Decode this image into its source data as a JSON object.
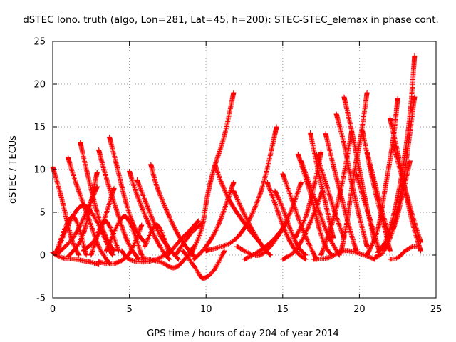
{
  "chart_data": {
    "type": "scatter",
    "title": "dSTEC Iono. truth (algo, Lon=281, Lat=45, h=200): STEC-STEC_elemax in phase cont.",
    "xlabel": "GPS time / hours of day 204 of year 2014",
    "ylabel": "dSTEC  / TECUs",
    "xlim": [
      0,
      25
    ],
    "ylim": [
      -5,
      25
    ],
    "xticks": [
      0,
      5,
      10,
      15,
      20,
      25
    ],
    "yticks": [
      -5,
      0,
      5,
      10,
      15,
      20,
      25
    ],
    "grid": true,
    "marker": "plus",
    "color": "#ff0000",
    "arcs": [
      {
        "x": [
          0.0,
          0.5,
          1.0,
          1.3,
          1.7
        ],
        "y": [
          10.3,
          7.2,
          3.5,
          1.5,
          0.0
        ]
      },
      {
        "x": [
          0.0,
          0.6,
          1.5,
          2.4,
          3.0
        ],
        "y": [
          0.3,
          -0.3,
          -0.5,
          -0.8,
          -1.1
        ]
      },
      {
        "x": [
          0.2,
          1.5,
          2.9
        ],
        "y": [
          0.0,
          2.5,
          8.0
        ]
      },
      {
        "x": [
          0.2,
          1.3,
          2.2
        ],
        "y": [
          0.2,
          4.5,
          0.0
        ]
      },
      {
        "x": [
          1.0,
          1.5,
          2.4,
          3.0,
          3.7
        ],
        "y": [
          11.4,
          8.5,
          4.0,
          1.0,
          -1.0
        ]
      },
      {
        "x": [
          1.0,
          2.0,
          2.9
        ],
        "y": [
          -0.2,
          2.5,
          9.7
        ]
      },
      {
        "x": [
          0.2,
          2.0,
          3.9
        ],
        "y": [
          0.2,
          5.8,
          0.0
        ]
      },
      {
        "x": [
          1.8,
          2.2,
          2.9,
          3.5,
          4.0
        ],
        "y": [
          13.2,
          10.0,
          5.0,
          2.0,
          0.5
        ]
      },
      {
        "x": [
          2.0,
          3.0,
          4.0
        ],
        "y": [
          0.5,
          2.5,
          7.8
        ]
      },
      {
        "x": [
          2.5,
          3.4,
          4.3
        ],
        "y": [
          0.0,
          4.0,
          0.5
        ]
      },
      {
        "x": [
          3.0,
          3.5,
          4.3,
          4.9,
          5.6
        ],
        "y": [
          12.3,
          9.0,
          4.5,
          1.5,
          -0.5
        ]
      },
      {
        "x": [
          3.0,
          4.0,
          5.0,
          5.8
        ],
        "y": [
          -0.8,
          -1.0,
          0.2,
          3.5
        ]
      },
      {
        "x": [
          3.7,
          4.1,
          4.8,
          5.4,
          6.0
        ],
        "y": [
          13.8,
          11.0,
          6.0,
          3.0,
          1.5
        ]
      },
      {
        "x": [
          3.5,
          4.7,
          5.8
        ],
        "y": [
          0.5,
          4.5,
          0.0
        ]
      },
      {
        "x": [
          4.5,
          5.0,
          6.0,
          7.0,
          7.6
        ],
        "y": [
          0.5,
          -0.5,
          -0.8,
          -0.3,
          0.5
        ]
      },
      {
        "x": [
          5.0,
          5.5,
          6.3,
          7.0,
          7.6
        ],
        "y": [
          9.8,
          7.0,
          3.5,
          1.0,
          -0.5
        ]
      },
      {
        "x": [
          5.5,
          6.0,
          6.8,
          7.5,
          8.2
        ],
        "y": [
          8.8,
          6.5,
          3.0,
          1.0,
          -0.5
        ]
      },
      {
        "x": [
          6.0,
          6.8,
          7.6
        ],
        "y": [
          1.0,
          3.5,
          0.3
        ]
      },
      {
        "x": [
          6.4,
          6.8,
          7.6,
          8.3,
          9.0,
          9.3
        ],
        "y": [
          10.6,
          8.0,
          4.5,
          2.0,
          0.3,
          -0.2
        ]
      },
      {
        "x": [
          5.8,
          7.0,
          7.9,
          8.6,
          9.2
        ],
        "y": [
          -0.3,
          -0.8,
          -1.5,
          -0.5,
          1.0
        ]
      },
      {
        "x": [
          7.5,
          8.2,
          9.0,
          9.5
        ],
        "y": [
          0.0,
          1.5,
          3.0,
          4.0
        ]
      },
      {
        "x": [
          8.0,
          9.0,
          9.8
        ],
        "y": [
          0.0,
          2.5,
          3.8
        ]
      },
      {
        "x": [
          8.5,
          9.3,
          9.8,
          10.5,
          11.2
        ],
        "y": [
          0.5,
          -1.5,
          -2.7,
          -1.8,
          0.5
        ]
      },
      {
        "x": [
          9.0,
          9.7,
          10.1,
          10.5,
          11.2,
          11.8
        ],
        "y": [
          0.0,
          3.0,
          7.0,
          10.0,
          14.0,
          19.0
        ]
      },
      {
        "x": [
          9.2,
          10.0,
          10.8,
          11.8
        ],
        "y": [
          -0.5,
          1.0,
          3.5,
          8.5
        ]
      },
      {
        "x": [
          10.6,
          11.0,
          11.5,
          12.0,
          12.8,
          13.5
        ],
        "y": [
          10.5,
          8.5,
          6.5,
          5.0,
          3.0,
          1.5
        ]
      },
      {
        "x": [
          11.8,
          12.3,
          13.0,
          13.7,
          14.2
        ],
        "y": [
          7.5,
          5.5,
          3.0,
          1.0,
          0.0
        ]
      },
      {
        "x": [
          10.0,
          12.0,
          13.5,
          14.6
        ],
        "y": [
          0.5,
          2.0,
          7.0,
          15.0
        ]
      },
      {
        "x": [
          12.0,
          13.5,
          14.8,
          15.5,
          16.2
        ],
        "y": [
          1.0,
          0.0,
          2.5,
          5.0,
          8.5
        ]
      },
      {
        "x": [
          12.5,
          13.5,
          14.5,
          15.3
        ],
        "y": [
          -0.5,
          0.5,
          2.0,
          4.0
        ]
      },
      {
        "x": [
          14.0,
          14.5,
          15.0,
          15.5,
          16.0,
          16.5
        ],
        "y": [
          8.5,
          6.0,
          3.5,
          1.5,
          0.2,
          -0.5
        ]
      },
      {
        "x": [
          14.5,
          15.0,
          15.5,
          16.0,
          16.5
        ],
        "y": [
          7.5,
          5.5,
          3.0,
          1.0,
          0.0
        ]
      },
      {
        "x": [
          15.0,
          15.6,
          16.3,
          17.2
        ],
        "y": [
          9.5,
          6.5,
          3.0,
          -0.5
        ]
      },
      {
        "x": [
          15.0,
          15.8,
          16.6,
          17.6
        ],
        "y": [
          -0.5,
          0.5,
          3.0,
          7.5
        ]
      },
      {
        "x": [
          15.8,
          16.5,
          17.1,
          17.5
        ],
        "y": [
          2.0,
          4.5,
          8.5,
          12.0
        ]
      },
      {
        "x": [
          16.0,
          16.5,
          17.0,
          17.4,
          17.8,
          18.2
        ],
        "y": [
          11.8,
          9.0,
          6.0,
          3.0,
          1.0,
          0.0
        ]
      },
      {
        "x": [
          16.2,
          16.7,
          17.2,
          17.7,
          18.2,
          18.7
        ],
        "y": [
          11.0,
          8.5,
          6.0,
          3.5,
          1.5,
          0.0
        ]
      },
      {
        "x": [
          16.8,
          17.3,
          17.8,
          18.3
        ],
        "y": [
          14.3,
          10.0,
          6.0,
          2.0
        ]
      },
      {
        "x": [
          17.2,
          17.8,
          18.4,
          19.0
        ],
        "y": [
          11.8,
          8.5,
          5.0,
          2.0
        ]
      },
      {
        "x": [
          17.5,
          18.0,
          18.5,
          19.0,
          19.5
        ],
        "y": [
          0.0,
          2.5,
          5.5,
          9.5,
          14.5
        ]
      },
      {
        "x": [
          17.8,
          18.3,
          18.8,
          19.3,
          19.8
        ],
        "y": [
          14.2,
          10.5,
          7.0,
          3.5,
          0.5
        ]
      },
      {
        "x": [
          17.0,
          18.0,
          19.0,
          20.0,
          21.0
        ],
        "y": [
          -0.5,
          -0.3,
          0.5,
          0.2,
          -0.5
        ]
      },
      {
        "x": [
          18.5,
          19.0,
          19.5,
          20.0,
          20.5
        ],
        "y": [
          16.5,
          13.0,
          8.5,
          4.5,
          1.0
        ]
      },
      {
        "x": [
          18.8,
          19.2,
          19.6,
          20.1,
          20.5
        ],
        "y": [
          0.3,
          4.0,
          9.0,
          14.0,
          19.0
        ]
      },
      {
        "x": [
          19.0,
          19.5,
          20.0,
          20.5,
          21.0
        ],
        "y": [
          18.5,
          14.5,
          10.0,
          5.5,
          1.5
        ]
      },
      {
        "x": [
          19.8,
          20.3,
          20.8,
          21.3
        ],
        "y": [
          9.5,
          6.5,
          3.5,
          0.5
        ]
      },
      {
        "x": [
          20.2,
          20.6,
          21.1,
          21.6,
          22.0
        ],
        "y": [
          14.5,
          11.0,
          7.0,
          3.5,
          0.5
        ]
      },
      {
        "x": [
          20.5,
          21.0,
          21.5,
          22.0
        ],
        "y": [
          12.0,
          8.5,
          5.0,
          2.0
        ]
      },
      {
        "x": [
          20.5,
          21.2,
          21.7,
          22.2,
          22.5
        ],
        "y": [
          0.0,
          3.0,
          8.0,
          13.5,
          18.3
        ]
      },
      {
        "x": [
          21.0,
          21.6,
          22.3,
          22.8,
          23.3
        ],
        "y": [
          -0.3,
          0.5,
          3.5,
          7.0,
          11.0
        ]
      },
      {
        "x": [
          22.0,
          22.5,
          23.0,
          23.5,
          24.0
        ],
        "y": [
          16.0,
          12.0,
          7.5,
          3.5,
          0.5
        ]
      },
      {
        "x": [
          22.2,
          22.8,
          23.4,
          24.0
        ],
        "y": [
          13.0,
          9.0,
          5.0,
          1.5
        ]
      },
      {
        "x": [
          22.0,
          22.5,
          23.0,
          23.5,
          23.9
        ],
        "y": [
          -0.5,
          -0.3,
          0.5,
          1.0,
          1.0
        ]
      },
      {
        "x": [
          22.2,
          22.8,
          23.2,
          23.6
        ],
        "y": [
          3.0,
          8.0,
          13.0,
          18.5
        ]
      },
      {
        "x": [
          21.2,
          21.8,
          22.4,
          22.9,
          23.3,
          23.6
        ],
        "y": [
          0.3,
          2.0,
          6.0,
          11.0,
          16.5,
          23.3
        ]
      }
    ]
  }
}
